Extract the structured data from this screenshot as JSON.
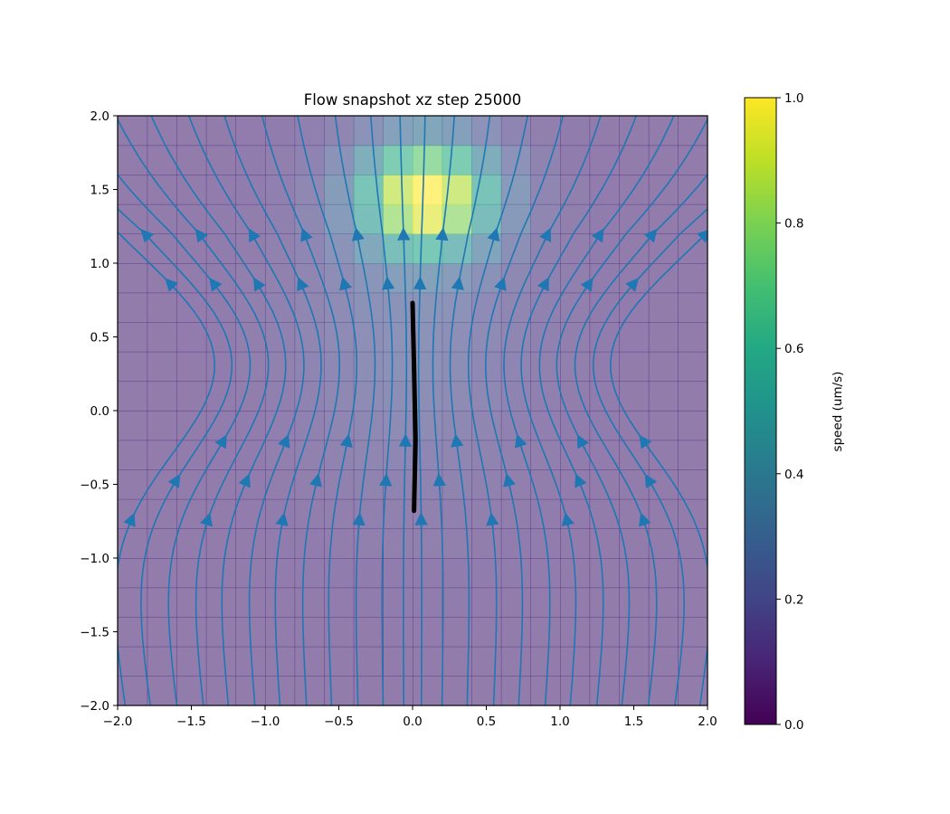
{
  "chart_data": {
    "type": "heatmap",
    "title": "Flow snapshot xz step 25000",
    "xlabel": "",
    "ylabel": "",
    "xlim": [
      -2.0,
      2.0
    ],
    "ylim": [
      -2.0,
      2.0
    ],
    "x_ticks": [
      "−2.0",
      "−1.5",
      "−1.0",
      "−0.5",
      "0.0",
      "0.5",
      "1.0",
      "1.5",
      "2.0"
    ],
    "y_ticks": [
      "−2.0",
      "−1.5",
      "−1.0",
      "−0.5",
      "0.0",
      "0.5",
      "1.0",
      "1.5",
      "2.0"
    ],
    "colorbar": {
      "label": "speed (um/s)",
      "range": [
        0.0,
        1.0
      ],
      "ticks": [
        "0.0",
        "0.2",
        "0.4",
        "0.6",
        "0.8",
        "1.0"
      ],
      "colormap": "viridis"
    },
    "speed_field": {
      "description_values": "approximate speed field sampled on 20x20 grid over [-2,2]x[-2,2]",
      "peak_center": [
        0.1,
        1.45
      ],
      "peak_value": 1.0,
      "background_value": 0.1
    },
    "streamline_color": "#1f77b4",
    "filament": {
      "color": "#000000",
      "points": [
        [
          0.0,
          0.73
        ],
        [
          0.01,
          0.3
        ],
        [
          0.02,
          -0.2
        ],
        [
          0.01,
          -0.68
        ]
      ]
    },
    "grid": false,
    "legend": "none"
  }
}
